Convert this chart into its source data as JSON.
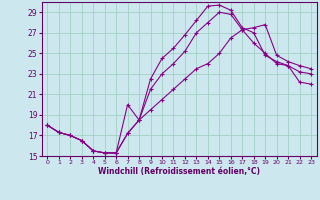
{
  "xlabel": "Windchill (Refroidissement éolien,°C)",
  "ylabel": "",
  "bg_color": "#cce8ee",
  "line_color": "#880088",
  "grid_color": "#99ccbb",
  "xlim": [
    -0.5,
    23.5
  ],
  "ylim": [
    15,
    30
  ],
  "xticks": [
    0,
    1,
    2,
    3,
    4,
    5,
    6,
    7,
    8,
    9,
    10,
    11,
    12,
    13,
    14,
    15,
    16,
    17,
    18,
    19,
    20,
    21,
    22,
    23
  ],
  "yticks": [
    15,
    17,
    19,
    21,
    23,
    25,
    27,
    29
  ],
  "series1_x": [
    0,
    1,
    2,
    3,
    4,
    5,
    6,
    7,
    8,
    9,
    10,
    11,
    12,
    13,
    14,
    15,
    16,
    17,
    18,
    19,
    20,
    21,
    22,
    23
  ],
  "series1_y": [
    18.0,
    17.3,
    17.0,
    16.5,
    15.5,
    15.3,
    15.3,
    20.0,
    18.5,
    22.5,
    24.5,
    25.5,
    26.8,
    28.2,
    29.6,
    29.7,
    29.2,
    27.5,
    27.0,
    24.8,
    24.2,
    23.8,
    23.2,
    23.0
  ],
  "series2_x": [
    0,
    1,
    2,
    3,
    4,
    5,
    6,
    7,
    8,
    9,
    10,
    11,
    12,
    13,
    14,
    15,
    16,
    17,
    18,
    19,
    20,
    21,
    22,
    23
  ],
  "series2_y": [
    18.0,
    17.3,
    17.0,
    16.5,
    15.5,
    15.3,
    15.3,
    17.2,
    18.5,
    21.5,
    23.0,
    24.0,
    25.2,
    27.0,
    28.0,
    29.0,
    28.8,
    27.3,
    26.0,
    25.0,
    24.0,
    23.8,
    22.2,
    22.0
  ],
  "series3_x": [
    0,
    1,
    2,
    3,
    4,
    5,
    6,
    7,
    8,
    9,
    10,
    11,
    12,
    13,
    14,
    15,
    16,
    17,
    18,
    19,
    20,
    21,
    22,
    23
  ],
  "series3_y": [
    18.0,
    17.3,
    17.0,
    16.5,
    15.5,
    15.3,
    15.3,
    17.2,
    18.5,
    19.5,
    20.5,
    21.5,
    22.5,
    23.5,
    24.0,
    25.0,
    26.5,
    27.3,
    27.5,
    27.8,
    24.8,
    24.2,
    23.8,
    23.5
  ]
}
